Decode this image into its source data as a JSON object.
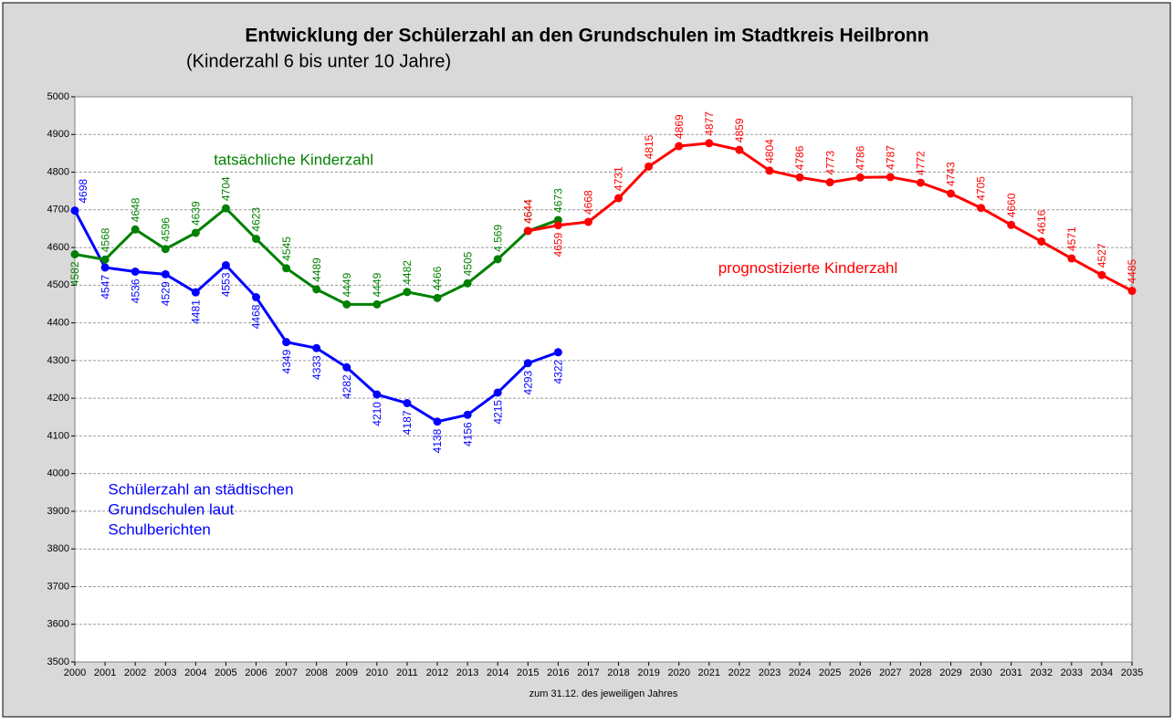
{
  "chart_data": {
    "type": "line",
    "title": "Entwicklung der Schülerzahl an den Grundschulen im Stadtkreis Heilbronn",
    "subtitle": "(Kinderzahl 6 bis unter 10 Jahre)",
    "x_label": "zum 31.12. des jeweiligen Jahres",
    "x": [
      2000,
      2001,
      2002,
      2003,
      2004,
      2005,
      2006,
      2007,
      2008,
      2009,
      2010,
      2011,
      2012,
      2013,
      2014,
      2015,
      2016,
      2017,
      2018,
      2019,
      2020,
      2021,
      2022,
      2023,
      2024,
      2025,
      2026,
      2027,
      2028,
      2029,
      2030,
      2031,
      2032,
      2033,
      2034,
      2035
    ],
    "xlim": [
      2000,
      2035
    ],
    "ylim": [
      3500,
      5000
    ],
    "yticks": [
      3500,
      3600,
      3700,
      3800,
      3900,
      4000,
      4100,
      4200,
      4300,
      4400,
      4500,
      4600,
      4700,
      4800,
      4900,
      5000
    ],
    "grid": true,
    "series": [
      {
        "name": "Schülerzahl an städtischen Grundschulen laut Schulberichten",
        "color": "#0000ff",
        "values": [
          4698,
          4547,
          4536,
          4529,
          4481,
          4553,
          4468,
          4349,
          4333,
          4282,
          4210,
          4187,
          4138,
          4156,
          4215,
          4293,
          4322,
          null,
          null,
          null,
          null,
          null,
          null,
          null,
          null,
          null,
          null,
          null,
          null,
          null,
          null,
          null,
          null,
          null,
          null,
          null
        ]
      },
      {
        "name": "tatsächliche Kinderzahl",
        "color": "#008000",
        "values": [
          4582,
          4568,
          4648,
          4596,
          4639,
          4704,
          4623,
          4545,
          4489,
          4449,
          4449,
          4482,
          4466,
          4505,
          4569,
          4644,
          4673,
          null,
          null,
          null,
          null,
          null,
          null,
          null,
          null,
          null,
          null,
          null,
          null,
          null,
          null,
          null,
          null,
          null,
          null,
          null
        ],
        "value_labels": [
          "4582",
          "4568",
          "4648",
          "4596",
          "4639",
          "4704",
          "4623",
          "4545",
          "4489",
          "4449",
          "4449",
          "4482",
          "4466",
          "4505",
          "4.569",
          "4644",
          "4673",
          null,
          null,
          null,
          null,
          null,
          null,
          null,
          null,
          null,
          null,
          null,
          null,
          null,
          null,
          null,
          null,
          null,
          null,
          null
        ]
      },
      {
        "name": "prognostizierte Kinderzahl",
        "color": "#ff0000",
        "values": [
          null,
          null,
          null,
          null,
          null,
          null,
          null,
          null,
          null,
          null,
          null,
          null,
          null,
          null,
          null,
          4644,
          4659,
          4668,
          4731,
          4815,
          4869,
          4877,
          4859,
          4804,
          4786,
          4773,
          4786,
          4787,
          4772,
          4743,
          4705,
          4660,
          4616,
          4571,
          4527,
          4485
        ]
      }
    ],
    "annotations": [
      {
        "lines": [
          "tatsächliche Kinderzahl"
        ],
        "color": "#008000",
        "x": 2004.6,
        "y": 4830
      },
      {
        "lines": [
          "prognostizierte Kinderzahl"
        ],
        "color": "#ff0000",
        "x": 2021.3,
        "y": 4543
      },
      {
        "lines": [
          "Schülerzahl an städtischen",
          "Grundschulen laut",
          "Schulberichten"
        ],
        "color": "#0000ff",
        "x": 2001.1,
        "y": 3955
      }
    ]
  }
}
